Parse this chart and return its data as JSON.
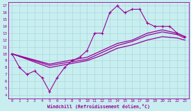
{
  "background_color": "#c8eef0",
  "grid_color": "#aad8dc",
  "line_color": "#990099",
  "xlabel": "Windchill (Refroidissement éolien,°C)",
  "xlim": [
    -0.5,
    23.5
  ],
  "ylim": [
    3.5,
    17.5
  ],
  "xticks": [
    0,
    1,
    2,
    3,
    4,
    5,
    6,
    7,
    8,
    9,
    10,
    11,
    12,
    13,
    14,
    15,
    16,
    17,
    18,
    19,
    20,
    21,
    22,
    23
  ],
  "yticks": [
    4,
    5,
    6,
    7,
    8,
    9,
    10,
    11,
    12,
    13,
    14,
    15,
    16,
    17
  ],
  "series": [
    {
      "x": [
        0,
        1,
        2,
        3,
        4,
        5,
        6,
        7,
        8,
        9,
        10,
        11,
        12,
        13,
        14,
        15,
        16,
        17,
        18,
        19,
        20,
        21,
        22,
        23
      ],
      "y": [
        10,
        8,
        7,
        7.5,
        6.5,
        4.5,
        6.5,
        8,
        9,
        9.5,
        10.5,
        13,
        13,
        16,
        17,
        16,
        16.5,
        16.5,
        14.5,
        14,
        14,
        14,
        13,
        12.5
      ],
      "marker": "+",
      "markersize": 3.5,
      "linewidth": 0.8
    },
    {
      "x": [
        0,
        5,
        10,
        12,
        14,
        16,
        18,
        20,
        22,
        23
      ],
      "y": [
        10,
        8.5,
        9.5,
        10.5,
        11.5,
        12.0,
        13.0,
        13.5,
        13.0,
        12.5
      ],
      "marker": null,
      "markersize": 0,
      "linewidth": 0.9
    },
    {
      "x": [
        0,
        5,
        10,
        12,
        14,
        16,
        18,
        20,
        22,
        23
      ],
      "y": [
        10,
        8.3,
        9.2,
        10.2,
        11.2,
        11.8,
        12.7,
        13.2,
        12.8,
        12.3
      ],
      "marker": null,
      "markersize": 0,
      "linewidth": 0.9
    },
    {
      "x": [
        0,
        5,
        10,
        12,
        14,
        16,
        18,
        20,
        22,
        23
      ],
      "y": [
        10,
        8.0,
        9.0,
        9.8,
        10.8,
        11.3,
        12.0,
        12.5,
        12.3,
        12.0
      ],
      "marker": null,
      "markersize": 0,
      "linewidth": 0.9
    }
  ]
}
